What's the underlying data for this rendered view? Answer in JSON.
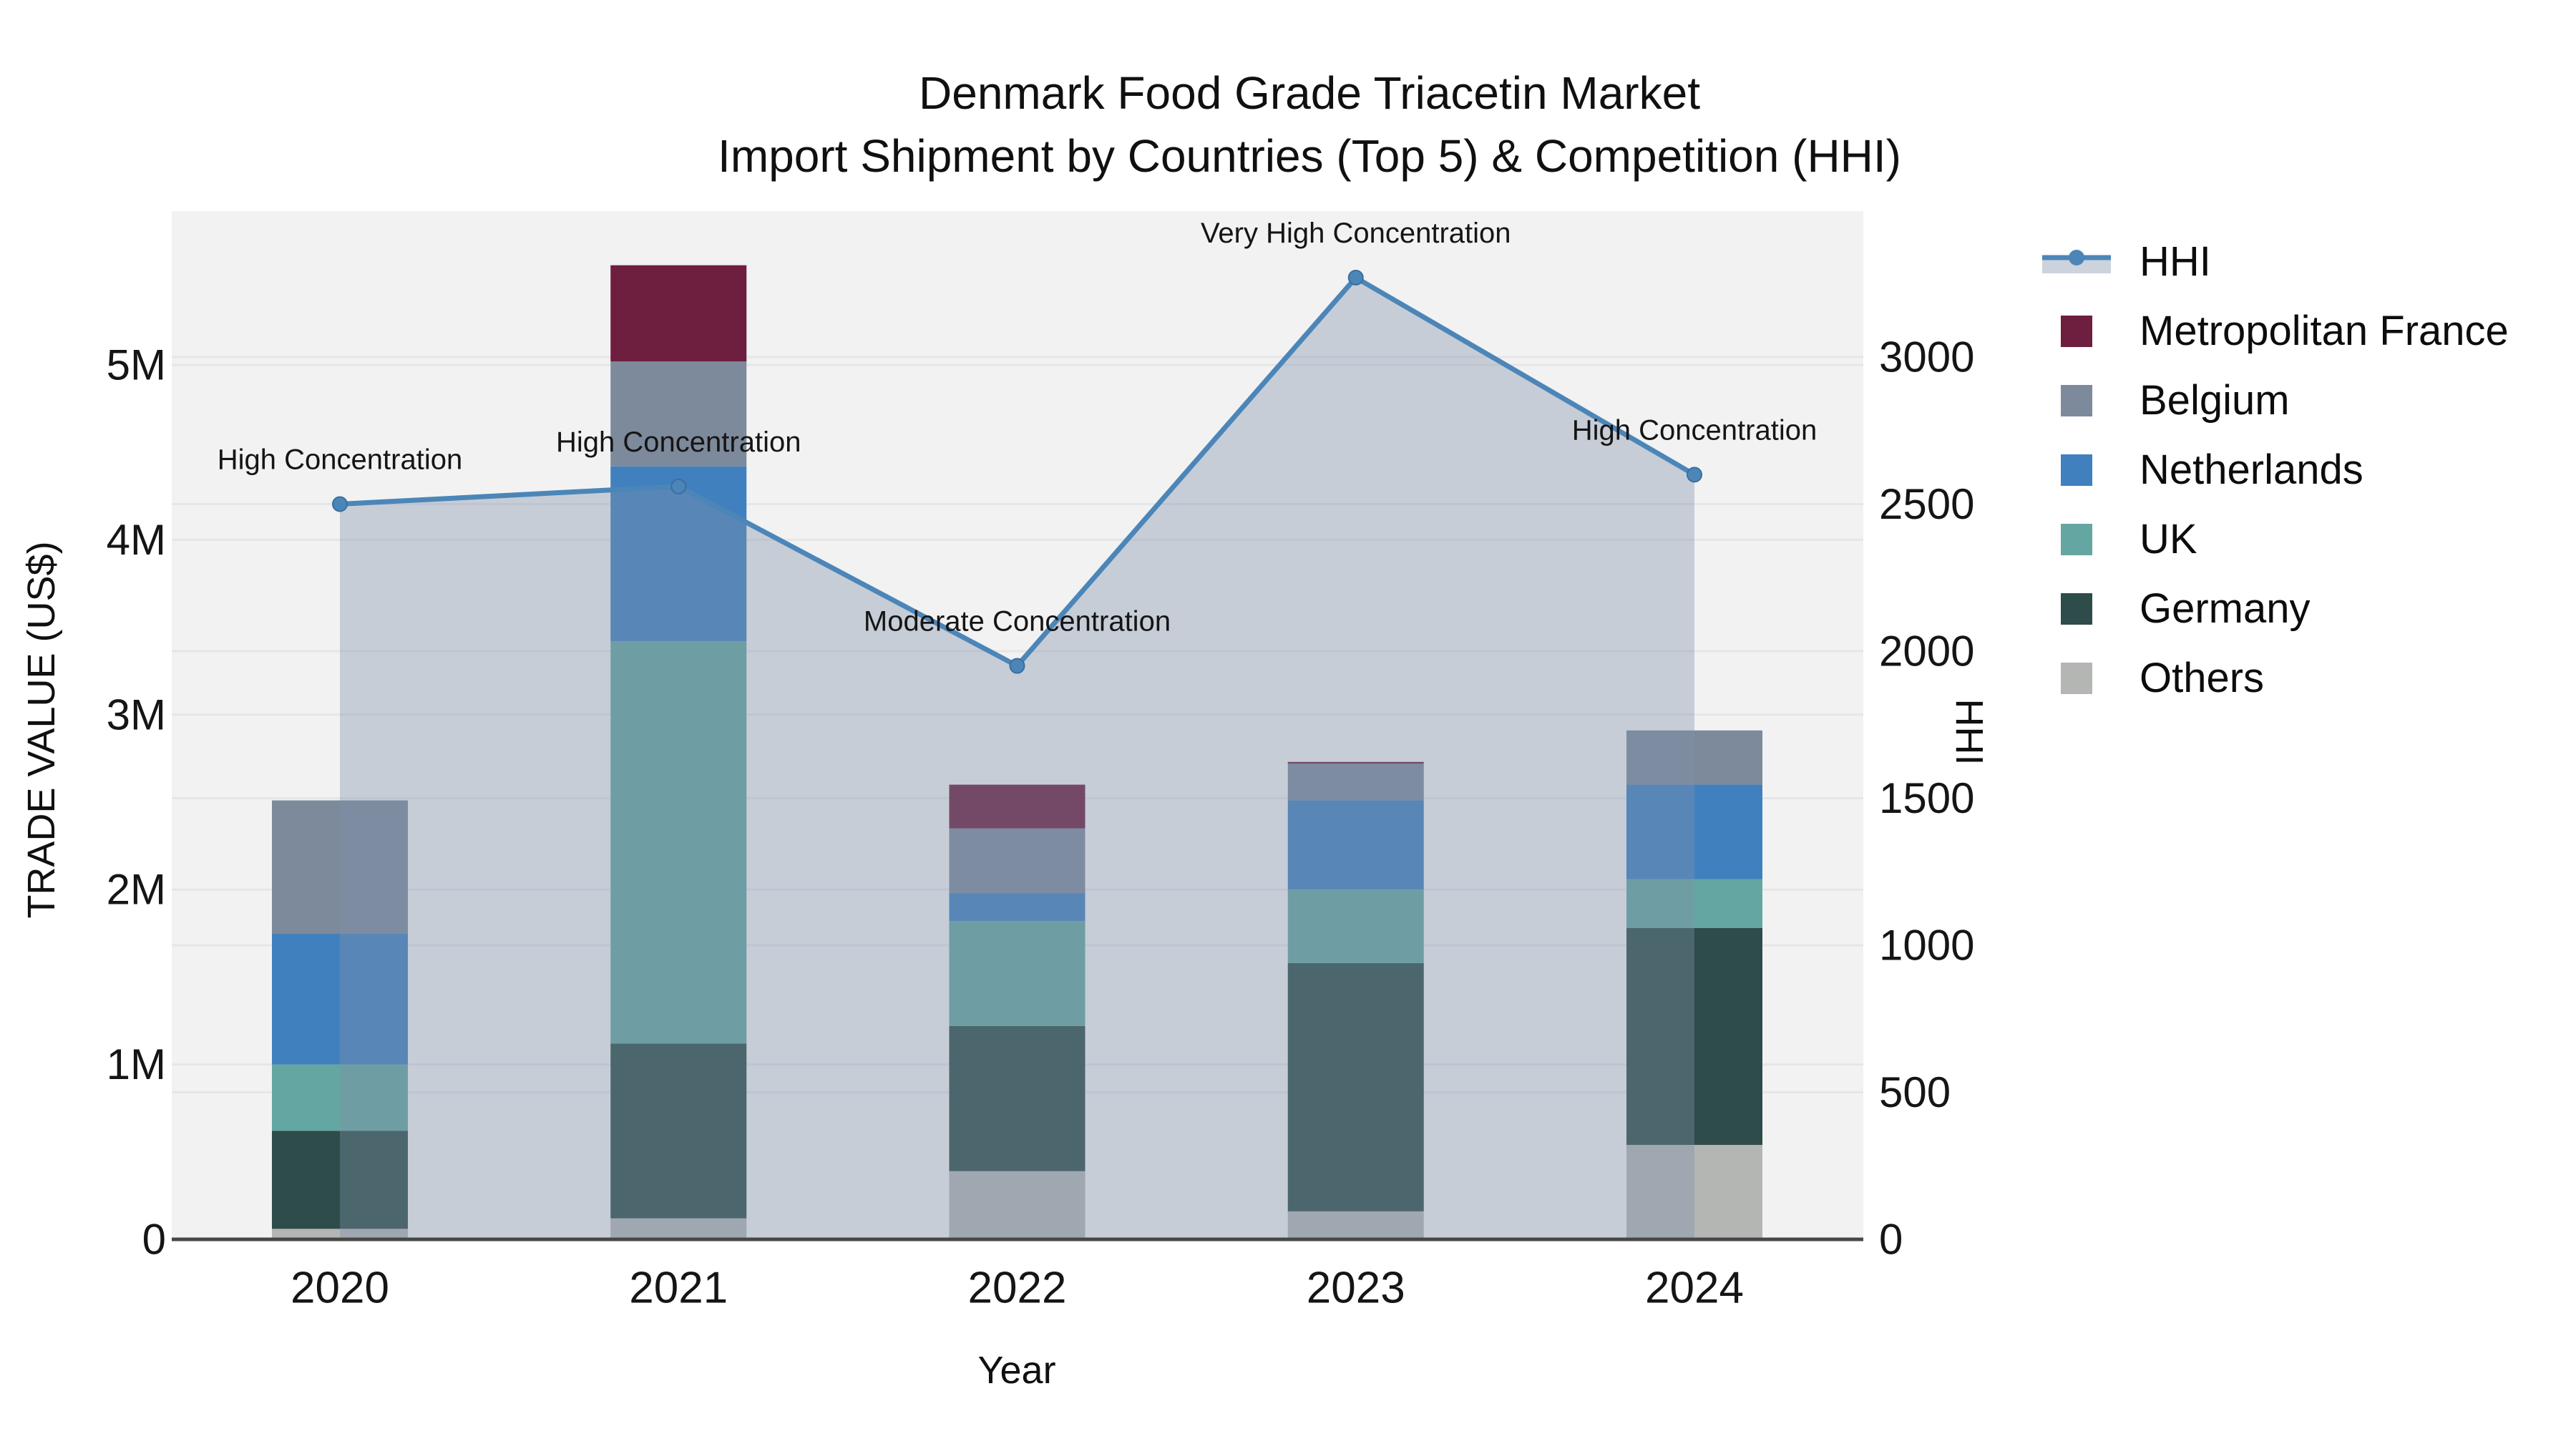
{
  "title": {
    "line1": "Denmark Food Grade Triacetin Market",
    "line2": "Import Shipment by Countries (Top 5) & Competition (HHI)"
  },
  "axes": {
    "x_label": "Year",
    "y_left_label": "TRADE VALUE (US$)",
    "y_right_label": "HHI"
  },
  "chart_data": {
    "type": "combo-stacked-bar-line",
    "x": [
      "2020",
      "2021",
      "2022",
      "2023",
      "2024"
    ],
    "bar_units": "US$ millions",
    "bar_series": [
      {
        "name": "Others",
        "color": "#b4b6b4",
        "values": [
          0.06,
          0.12,
          0.39,
          0.16,
          0.54
        ]
      },
      {
        "name": "Germany",
        "color": "#2e4c49",
        "values": [
          0.56,
          1.0,
          0.83,
          1.42,
          1.24
        ]
      },
      {
        "name": "UK",
        "color": "#64a6a1",
        "values": [
          0.38,
          2.3,
          0.6,
          0.42,
          0.28
        ]
      },
      {
        "name": "Netherlands",
        "color": "#4180be",
        "values": [
          0.75,
          1.0,
          0.16,
          0.51,
          0.54
        ]
      },
      {
        "name": "Belgium",
        "color": "#7c8a9b",
        "values": [
          0.76,
          0.6,
          0.37,
          0.21,
          0.31
        ]
      },
      {
        "name": "Metropolitan France",
        "color": "#6e1e3e",
        "values": [
          0.0,
          0.55,
          0.25,
          0.01,
          0.0
        ]
      }
    ],
    "line_series": {
      "name": "HHI",
      "color": "#4c86b8",
      "marker_stroke": "#3a6e9e",
      "area_fill": "rgba(127,144,170,0.38)",
      "values": [
        2500,
        2560,
        1950,
        3270,
        2600
      ]
    },
    "annotations": [
      {
        "x": "2020",
        "text": "High Concentration"
      },
      {
        "x": "2021",
        "text": "High Concentration"
      },
      {
        "x": "2022",
        "text": "Moderate Concentration"
      },
      {
        "x": "2023",
        "text": "Very High Concentration"
      },
      {
        "x": "2024",
        "text": "High Concentration"
      }
    ],
    "y_left": {
      "ticks": [
        {
          "v": 0,
          "label": "0"
        },
        {
          "v": 1,
          "label": "1M"
        },
        {
          "v": 2,
          "label": "2M"
        },
        {
          "v": 3,
          "label": "3M"
        },
        {
          "v": 4,
          "label": "4M"
        },
        {
          "v": 5,
          "label": "5M"
        }
      ],
      "range": [
        0,
        5.88
      ]
    },
    "y_right": {
      "ticks": [
        {
          "v": 0,
          "label": "0"
        },
        {
          "v": 500,
          "label": "500"
        },
        {
          "v": 1000,
          "label": "1000"
        },
        {
          "v": 1500,
          "label": "1500"
        },
        {
          "v": 2000,
          "label": "2000"
        },
        {
          "v": 2500,
          "label": "2500"
        },
        {
          "v": 3000,
          "label": "3000"
        }
      ],
      "range": [
        0,
        3497
      ]
    },
    "grid": true,
    "plot_bg": "#f2f2f3",
    "grid_color": "#e6e6e8",
    "axis_line_color": "#474747"
  },
  "legend": {
    "items": [
      {
        "label": "HHI",
        "type": "line",
        "color": "#4c86b8"
      },
      {
        "label": "Metropolitan France",
        "type": "swatch",
        "color": "#6e1e3e"
      },
      {
        "label": "Belgium",
        "type": "swatch",
        "color": "#7c8a9b"
      },
      {
        "label": "Netherlands",
        "type": "swatch",
        "color": "#4180be"
      },
      {
        "label": "UK",
        "type": "swatch",
        "color": "#64a6a1"
      },
      {
        "label": "Germany",
        "type": "swatch",
        "color": "#2e4c49"
      },
      {
        "label": "Others",
        "type": "swatch",
        "color": "#b4b6b4"
      }
    ]
  }
}
